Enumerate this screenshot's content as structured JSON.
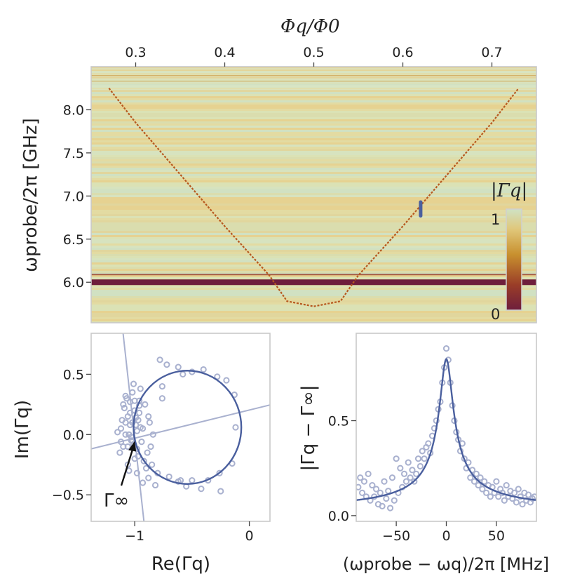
{
  "chart_data": [
    {
      "panel": "top",
      "type": "heatmap",
      "title": "",
      "top_axis_label": "Φq/Φ0",
      "top_xticks": [
        0.3,
        0.4,
        0.5,
        0.6,
        0.7
      ],
      "top_xticklabels": [
        "0.3",
        "0.4",
        "0.5",
        "0.6",
        "0.7"
      ],
      "xlim": [
        0.25,
        0.75
      ],
      "ylabel": "ωprobe/2π [GHz]",
      "yticks": [
        6.0,
        6.5,
        7.0,
        7.5,
        8.0
      ],
      "yticklabels": [
        "6.0",
        "6.5",
        "7.0",
        "7.5",
        "8.0"
      ],
      "ylim": [
        5.53,
        8.5
      ],
      "colorbar": {
        "label": "|Γq|",
        "ticks": [
          0,
          1
        ],
        "ticklabels": [
          "0",
          "1"
        ]
      },
      "resonator_band_GHz": 6.0,
      "qubit_dispersion": {
        "phi": [
          0.27,
          0.3,
          0.35,
          0.4,
          0.45,
          0.47,
          0.5,
          0.53,
          0.55,
          0.6,
          0.65,
          0.7,
          0.73
        ],
        "freq_GHz": [
          8.25,
          7.85,
          7.25,
          6.65,
          6.08,
          5.78,
          5.72,
          5.78,
          6.08,
          6.65,
          7.25,
          7.85,
          8.25
        ]
      },
      "marker": {
        "phi": 0.62,
        "freq_range_GHz": [
          6.77,
          6.93
        ]
      }
    },
    {
      "panel": "bottom-left",
      "type": "scatter",
      "xlabel": "Re(Γq)",
      "ylabel": "Im(Γq)",
      "xlim": [
        -1.38,
        0.18
      ],
      "ylim": [
        -0.72,
        0.84
      ],
      "xticks": [
        -1,
        0
      ],
      "xticklabels": [
        "−1",
        "0"
      ],
      "yticks": [
        -0.5,
        0.0,
        0.5
      ],
      "yticklabels": [
        "−0.5",
        "0.0",
        "0.5"
      ],
      "fit_circle": {
        "center_re": -0.54,
        "center_im": 0.06,
        "radius": 0.47
      },
      "annotation": "Γ∞",
      "gamma_inf": {
        "re": -1.0,
        "im": -0.03
      },
      "series": [
        {
          "name": "data",
          "x": [
            -1.12,
            -1.08,
            -1.05,
            -1.02,
            -0.99,
            -0.97,
            -1.1,
            -1.06,
            -1.03,
            -1.0,
            -0.98,
            -1.09,
            -1.04,
            -1.01,
            -0.96,
            -1.07,
            -1.13,
            -1.11,
            -1.0,
            -0.95,
            -1.06,
            -1.02,
            -0.98,
            -1.08,
            -1.04,
            -1.01,
            -0.97,
            -1.1,
            -1.05,
            -0.99,
            -1.03,
            -1.15,
            -1.08,
            -1.02,
            -0.94,
            -1.06,
            -1.0,
            -0.96,
            -1.12,
            -1.04,
            -0.92,
            -0.9,
            -0.88,
            -0.93,
            -0.86,
            -0.91,
            -0.84,
            -0.89,
            -0.95,
            -0.87,
            -0.78,
            -0.72,
            -0.62,
            -0.5,
            -0.4,
            -0.28,
            -0.2,
            -0.13,
            -0.12,
            -0.15,
            -0.26,
            -0.36,
            -0.5,
            -0.62,
            -0.7,
            -0.8,
            -0.88,
            -0.93,
            -0.96,
            -0.98,
            -0.85,
            -0.76,
            -0.58,
            -0.42,
            -0.25,
            -0.6,
            -0.76,
            -0.82,
            -0.55
          ],
          "y": [
            0.05,
            0.1,
            0.0,
            -0.05,
            0.08,
            0.12,
            -0.1,
            0.15,
            -0.02,
            0.2,
            0.03,
            0.22,
            0.27,
            -0.08,
            0.18,
            0.3,
            -0.15,
            0.12,
            -0.2,
            0.06,
            -0.25,
            0.35,
            -0.12,
            0.0,
            0.08,
            0.42,
            -0.18,
            0.25,
            -0.3,
            0.14,
            -0.05,
            0.02,
            0.32,
            0.1,
            -0.06,
            -0.1,
            0.28,
            0.24,
            -0.06,
            0.18,
            -0.22,
            -0.28,
            0.15,
            0.05,
            -0.1,
            0.25,
            0.0,
            -0.15,
            0.38,
            0.1,
            0.62,
            0.58,
            0.56,
            0.52,
            0.54,
            0.48,
            0.45,
            0.33,
            0.06,
            -0.24,
            -0.32,
            -0.38,
            -0.38,
            -0.39,
            -0.35,
            -0.32,
            -0.36,
            -0.4,
            0.28,
            -0.32,
            -0.25,
            0.4,
            0.5,
            -0.45,
            -0.47,
            -0.38,
            0.3,
            -0.42,
            -0.43
          ]
        }
      ]
    },
    {
      "panel": "bottom-right",
      "type": "scatter",
      "xlabel": "(ωprobe − ωq)/2π [MHz]",
      "ylabel": "|Γq − Γ∞|",
      "xlim": [
        -90,
        90
      ],
      "ylim": [
        -0.03,
        0.96
      ],
      "xticks": [
        -50,
        0,
        50
      ],
      "xticklabels": [
        "−50",
        "0",
        "50"
      ],
      "yticks": [
        0.0,
        0.5
      ],
      "yticklabels": [
        "0.0",
        "0.5"
      ],
      "fit_lorentzian": {
        "amplitude": 0.86,
        "center_MHz": 0,
        "hwhm_MHz": 6.5,
        "baseline": 0.06
      },
      "series": [
        {
          "name": "data",
          "x": [
            -88,
            -86,
            -84,
            -82,
            -80,
            -78,
            -76,
            -74,
            -72,
            -70,
            -68,
            -66,
            -64,
            -62,
            -60,
            -58,
            -56,
            -54,
            -52,
            -50,
            -48,
            -46,
            -44,
            -42,
            -40,
            -38,
            -36,
            -34,
            -32,
            -30,
            -28,
            -26,
            -24,
            -22,
            -20,
            -18,
            -16,
            -14,
            -12,
            -10,
            -8,
            -6,
            -4,
            -2,
            0,
            2,
            4,
            6,
            8,
            10,
            12,
            14,
            16,
            18,
            20,
            22,
            24,
            26,
            28,
            30,
            32,
            34,
            36,
            38,
            40,
            42,
            44,
            46,
            48,
            50,
            52,
            54,
            56,
            58,
            60,
            62,
            64,
            66,
            68,
            70,
            72,
            74,
            76,
            78,
            80,
            82,
            84,
            86,
            88
          ],
          "y": [
            0.15,
            0.2,
            0.12,
            0.18,
            0.1,
            0.22,
            0.08,
            0.16,
            0.1,
            0.14,
            0.06,
            0.12,
            0.05,
            0.18,
            0.09,
            0.13,
            0.04,
            0.2,
            0.08,
            0.3,
            0.12,
            0.25,
            0.15,
            0.22,
            0.18,
            0.28,
            0.2,
            0.24,
            0.18,
            0.22,
            0.3,
            0.26,
            0.34,
            0.3,
            0.36,
            0.38,
            0.33,
            0.42,
            0.46,
            0.5,
            0.56,
            0.6,
            0.7,
            0.78,
            0.88,
            0.82,
            0.7,
            0.58,
            0.5,
            0.44,
            0.4,
            0.34,
            0.38,
            0.3,
            0.25,
            0.28,
            0.2,
            0.24,
            0.18,
            0.22,
            0.16,
            0.2,
            0.14,
            0.18,
            0.12,
            0.16,
            0.1,
            0.15,
            0.12,
            0.18,
            0.1,
            0.14,
            0.12,
            0.08,
            0.16,
            0.1,
            0.13,
            0.09,
            0.12,
            0.07,
            0.14,
            0.1,
            0.06,
            0.12,
            0.08,
            0.11,
            0.07,
            0.09,
            0.1
          ]
        }
      ]
    }
  ]
}
